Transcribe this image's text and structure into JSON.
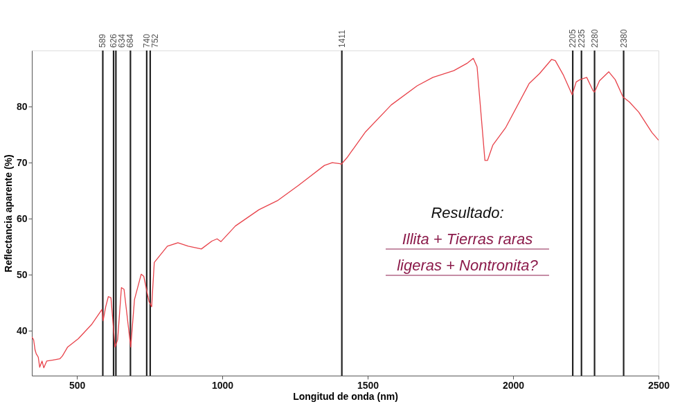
{
  "chart_data": {
    "type": "line",
    "xlabel": "Longitud de onda (nm)",
    "ylabel": "Reflectancia aparente (%)",
    "series": [
      {
        "color": "#e8424a",
        "x": [
          345,
          351,
          356,
          360,
          367,
          372,
          380,
          386,
          396,
          419,
          441,
          450,
          468,
          505,
          550,
          586,
          590,
          599,
          608,
          617,
          631,
          640,
          653,
          662,
          685,
          698,
          721,
          730,
          748,
          757,
          766,
          811,
          847,
          883,
          928,
          964,
          982,
          995,
          1045,
          1126,
          1189,
          1261,
          1351,
          1378,
          1405,
          1409,
          1429,
          1491,
          1581,
          1670,
          1724,
          1796,
          1841,
          1863,
          1876,
          1903,
          1912,
          1930,
          1975,
          2055,
          2091,
          2132,
          2145,
          2172,
          2203,
          2217,
          2230,
          2253,
          2275,
          2280,
          2297,
          2329,
          2351,
          2378,
          2400,
          2432,
          2477,
          2500
        ],
        "values": [
          38.9,
          38.4,
          36.6,
          35.9,
          35.3,
          33.5,
          34.6,
          33.4,
          34.6,
          34.8,
          35.0,
          35.5,
          37.1,
          38.6,
          41.1,
          43.8,
          41.8,
          44.3,
          46.1,
          45.9,
          37.1,
          38.4,
          47.7,
          47.4,
          37.1,
          45.6,
          50.1,
          49.7,
          45.2,
          44.3,
          52.2,
          55.1,
          55.7,
          55.1,
          54.6,
          56.0,
          56.4,
          55.9,
          58.7,
          61.6,
          63.2,
          65.9,
          69.5,
          70.0,
          69.8,
          69.7,
          70.9,
          75.4,
          80.3,
          83.7,
          85.2,
          86.4,
          87.7,
          88.6,
          87.1,
          70.4,
          70.4,
          73.1,
          76.3,
          84.1,
          85.9,
          88.4,
          88.2,
          85.7,
          82.1,
          84.4,
          84.8,
          85.2,
          82.8,
          82.6,
          84.6,
          86.2,
          84.8,
          81.7,
          80.8,
          79.0,
          75.4,
          74.0
        ]
      }
    ],
    "xlim": [
      345,
      2500
    ],
    "xticks": [
      500,
      1000,
      1500,
      2000,
      2500
    ],
    "ylim": [
      32,
      90
    ],
    "yticks": [
      40,
      50,
      60,
      70,
      80
    ],
    "grid": false,
    "marker": "none",
    "line_style": "solid",
    "ref_lines": [
      {
        "axis": "x",
        "value": 589,
        "label": "589",
        "color": "#222222"
      },
      {
        "axis": "x",
        "value": 626,
        "label": "626",
        "color": "#222222"
      },
      {
        "axis": "x",
        "value": 634,
        "label": "634",
        "color": "#222222"
      },
      {
        "axis": "x",
        "value": 684,
        "label": "684",
        "color": "#222222"
      },
      {
        "axis": "x",
        "value": 740,
        "label": "740",
        "color": "#222222"
      },
      {
        "axis": "x",
        "value": 752,
        "label": "752",
        "color": "#222222"
      },
      {
        "axis": "x",
        "value": 1411,
        "label": "1411",
        "color": "#222222"
      },
      {
        "axis": "x",
        "value": 2205,
        "label": "2205",
        "color": "#222222"
      },
      {
        "axis": "x",
        "value": 2235,
        "label": "2235",
        "color": "#222222"
      },
      {
        "axis": "x",
        "value": 2280,
        "label": "2280",
        "color": "#222222"
      },
      {
        "axis": "x",
        "value": 2380,
        "label": "2380",
        "color": "#222222"
      }
    ],
    "annotations": [
      "Resultado:",
      "Illita + Tierras raras",
      "ligeras + Nontronita?"
    ]
  }
}
